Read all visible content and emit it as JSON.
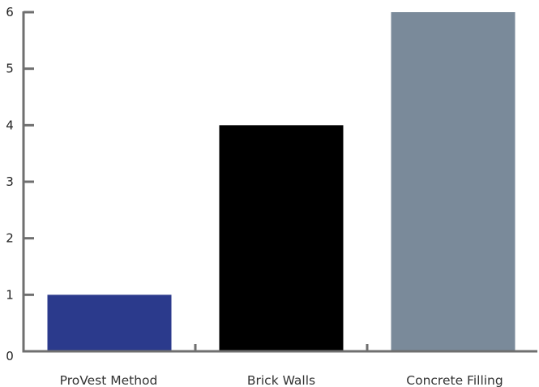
{
  "chart_data": {
    "type": "bar",
    "title": "",
    "xlabel": "",
    "ylabel": "",
    "categories": [
      "ProVest Method",
      "Brick Walls",
      "Concrete Filling"
    ],
    "values": [
      1,
      4,
      6
    ],
    "colors": [
      "#2b3a8c",
      "#000000",
      "#7a8a9a"
    ],
    "ylim": [
      0,
      6
    ],
    "yticks": [
      "0",
      "1",
      "2",
      "3",
      "4",
      "5",
      "6"
    ],
    "grid": false,
    "legend": "none"
  }
}
